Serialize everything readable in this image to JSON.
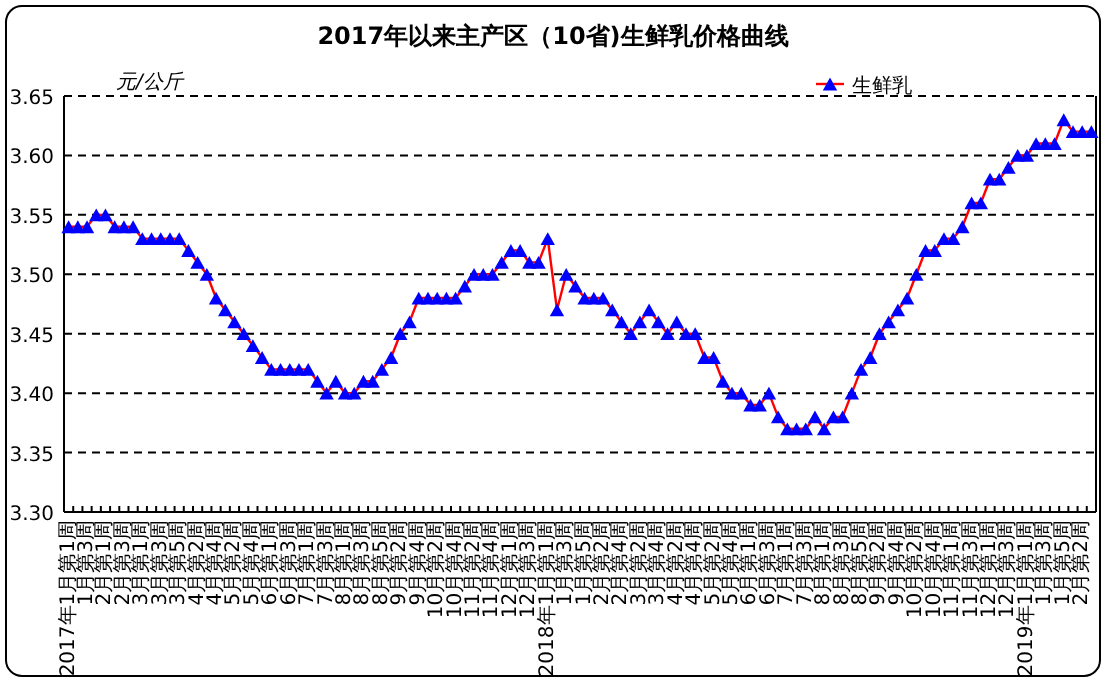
{
  "chart_data": {
    "type": "line",
    "title": "2017年以来主产区（10省)生鲜乳价格曲线",
    "ylabel": "元/公斤",
    "categories": [
      "2017年1月第1周",
      null,
      "1月第3周",
      null,
      "2月第1周",
      null,
      "2月第3周",
      null,
      "3月第1周",
      null,
      "3月第3周",
      null,
      "3月第5周",
      null,
      "4月第2周",
      null,
      "4月第4周",
      null,
      "5月第2周",
      null,
      "5月第4周",
      null,
      "6月第1周",
      null,
      "6月第3周",
      null,
      "7月第1周",
      null,
      "7月第3周",
      null,
      "8月第1周",
      null,
      "8月第3周",
      null,
      "8月第5周",
      null,
      "9月第2周",
      null,
      "9月第4周",
      null,
      "10月第2周",
      null,
      "10月第4周",
      null,
      "11月第2周",
      null,
      "11月第4周",
      null,
      "12月第1周",
      null,
      "12月第3周",
      null,
      "2018年1月第1周",
      null,
      "1月第3周",
      null,
      "1月第5周",
      null,
      "2月第2周",
      null,
      "2月第4周",
      null,
      "3月第2周",
      null,
      "3月第4周",
      null,
      "4月第2周",
      null,
      "4月第4周",
      null,
      "5月第2周",
      null,
      "5月第4周",
      null,
      "6月第1周",
      null,
      "6月第3周",
      null,
      "7月第1周",
      null,
      "7月第3周",
      null,
      "8月第1周",
      null,
      "8月第3周",
      null,
      "8月第5周",
      null,
      "9月第2周",
      null,
      "9月第4周",
      null,
      "10月第2周",
      null,
      "10月第4周",
      null,
      "11月第1周",
      null,
      "11月第3周",
      null,
      "12月第1周",
      null,
      "12月第3周",
      null,
      "2019年1月第1周",
      null,
      "1月第3周",
      null,
      "1月第5周",
      null,
      "2月第2周",
      null
    ],
    "series": [
      {
        "name": "生鲜乳",
        "color": "#ff0000",
        "marker": "none",
        "values": [
          3.54,
          3.54,
          3.54,
          3.55,
          3.55,
          3.54,
          3.54,
          3.54,
          3.53,
          3.53,
          3.53,
          3.53,
          3.53,
          3.52,
          3.51,
          3.5,
          3.48,
          3.47,
          3.46,
          3.45,
          3.44,
          3.43,
          3.42,
          3.42,
          3.42,
          3.42,
          3.42,
          3.41,
          3.4,
          3.41,
          3.4,
          3.4,
          3.41,
          3.41,
          3.42,
          3.43,
          3.45,
          3.46,
          3.48,
          3.48,
          3.48,
          3.48,
          3.48,
          3.49,
          3.5,
          3.5,
          3.5,
          3.51,
          3.52,
          3.52,
          3.51,
          3.51,
          3.53,
          3.47,
          3.5,
          3.49,
          3.48,
          3.48,
          3.48,
          3.47,
          3.46,
          3.45,
          3.46,
          3.47,
          3.46,
          3.45,
          3.46,
          3.45,
          3.45,
          3.43,
          3.43,
          3.41,
          3.4,
          3.4,
          3.39,
          3.39,
          3.4,
          3.38,
          3.37,
          3.37,
          3.37,
          3.38,
          3.37,
          3.38,
          3.38,
          3.4,
          3.42,
          3.43,
          3.45,
          3.46,
          3.47,
          3.48,
          3.5,
          3.52,
          3.52,
          3.53,
          3.53,
          3.54,
          3.56,
          3.56,
          3.58,
          3.58,
          3.59,
          3.6,
          3.6,
          3.61,
          3.61,
          3.61,
          3.63,
          3.62,
          3.62,
          3.62
        ]
      },
      {
        "type": "scatter",
        "color": "#0000ff",
        "marker": "triangle",
        "values": [
          3.54,
          3.54,
          3.54,
          3.55,
          3.55,
          3.54,
          3.54,
          3.54,
          3.53,
          3.53,
          3.53,
          3.53,
          3.53,
          3.52,
          3.51,
          3.5,
          3.48,
          3.47,
          3.46,
          3.45,
          3.44,
          3.43,
          3.42,
          3.42,
          3.42,
          3.42,
          3.42,
          3.41,
          3.4,
          3.41,
          3.4,
          3.4,
          3.41,
          3.41,
          3.42,
          3.43,
          3.45,
          3.46,
          3.48,
          3.48,
          3.48,
          3.48,
          3.48,
          3.49,
          3.5,
          3.5,
          3.5,
          3.51,
          3.52,
          3.52,
          3.51,
          3.51,
          3.53,
          3.47,
          3.5,
          3.49,
          3.48,
          3.48,
          3.48,
          3.47,
          3.46,
          3.45,
          3.46,
          3.47,
          3.46,
          3.45,
          3.46,
          3.45,
          3.45,
          3.43,
          3.43,
          3.41,
          3.4,
          3.4,
          3.39,
          3.39,
          3.4,
          3.38,
          3.37,
          3.37,
          3.37,
          3.38,
          3.37,
          3.38,
          3.38,
          3.4,
          3.42,
          3.43,
          3.45,
          3.46,
          3.47,
          3.48,
          3.5,
          3.52,
          3.52,
          3.53,
          3.53,
          3.54,
          3.56,
          3.56,
          3.58,
          3.58,
          3.59,
          3.6,
          3.6,
          3.61,
          3.61,
          3.61,
          3.63,
          3.62,
          3.62,
          3.62
        ]
      }
    ],
    "ylim": [
      3.3,
      3.65
    ],
    "yticks": [
      {
        "value": 3.3,
        "label": "3.30"
      },
      {
        "value": 3.35,
        "label": "3.35"
      },
      {
        "value": 3.4,
        "label": "3.40"
      },
      {
        "value": 3.45,
        "label": "3.45"
      },
      {
        "value": 3.5,
        "label": "3.50"
      },
      {
        "value": 3.55,
        "label": "3.55"
      },
      {
        "value": 3.6,
        "label": "3.60"
      },
      {
        "value": 3.65,
        "label": "3.65"
      }
    ],
    "grid": "y",
    "legend": "top right",
    "line_style": "solid"
  }
}
